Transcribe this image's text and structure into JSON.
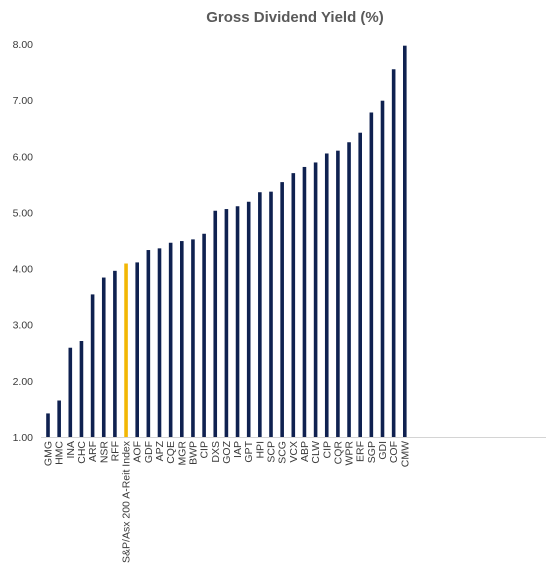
{
  "chart_data": {
    "type": "bar",
    "title": "Gross Dividend Yield (%)",
    "xlabel": "",
    "ylabel": "",
    "ylim": [
      1.0,
      8.0
    ],
    "yticks": [
      "1.00",
      "2.00",
      "3.00",
      "4.00",
      "5.00",
      "6.00",
      "7.00",
      "8.00"
    ],
    "grid": false,
    "legend": "none",
    "bar_color": "#0f2150",
    "highlight_color": "#f2b705",
    "highlight_category": "S&P/Asx 200 A-Reit Index",
    "categories": [
      "GMG",
      "HMC",
      "INA",
      "CHC",
      "ARF",
      "NSR",
      "RFF",
      "S&P/Asx 200 A-Reit Index",
      "AOF",
      "GDF",
      "APZ",
      "CQE",
      "MGR",
      "BWP",
      "CIP",
      "DXS",
      "GOZ",
      "IAP",
      "GPT",
      "HPI",
      "SCP",
      "SCG",
      "VCX",
      "ABP",
      "CLW",
      "CIP",
      "CQR",
      "WPR",
      "ERF",
      "SGP",
      "GDI",
      "COF",
      "CMW"
    ],
    "values": [
      1.42,
      1.65,
      2.59,
      2.71,
      3.54,
      3.84,
      3.96,
      4.09,
      4.11,
      4.33,
      4.36,
      4.46,
      4.49,
      4.52,
      4.62,
      5.03,
      5.06,
      5.11,
      5.19,
      5.36,
      5.37,
      5.54,
      5.7,
      5.81,
      5.89,
      6.05,
      6.1,
      6.25,
      6.42,
      6.78,
      6.99,
      7.55,
      7.97
    ]
  }
}
